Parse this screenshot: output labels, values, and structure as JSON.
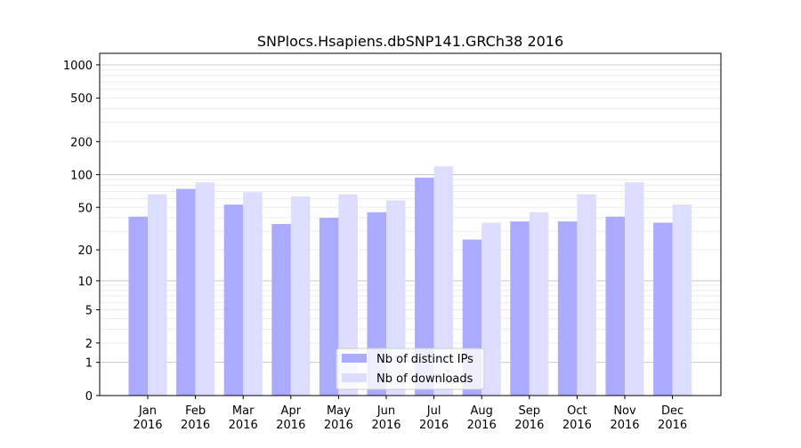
{
  "chart_data": {
    "type": "bar",
    "title": "SNPlocs.Hsapiens.dbSNP141.GRCh38 2016",
    "xlabel": "",
    "ylabel": "",
    "yscale": "log(y+1)",
    "ylim": [
      0,
      1200
    ],
    "yticks": [
      0,
      1,
      2,
      5,
      10,
      20,
      50,
      100,
      200,
      500,
      1000
    ],
    "grid": true,
    "legend_position": "bottom-center",
    "categories": [
      "Jan\n2016",
      "Feb\n2016",
      "Mar\n2016",
      "Apr\n2016",
      "May\n2016",
      "Jun\n2016",
      "Jul\n2016",
      "Aug\n2016",
      "Sep\n2016",
      "Oct\n2016",
      "Nov\n2016",
      "Dec\n2016"
    ],
    "series": [
      {
        "name": "Nb of distinct IPs",
        "color": "#aaaaff",
        "values": [
          41,
          74,
          53,
          35,
          40,
          45,
          94,
          25,
          37,
          37,
          41,
          36
        ]
      },
      {
        "name": "Nb of downloads",
        "color": "#ddddff",
        "values": [
          66,
          85,
          69,
          63,
          66,
          58,
          119,
          36,
          45,
          66,
          85,
          53
        ]
      }
    ]
  }
}
